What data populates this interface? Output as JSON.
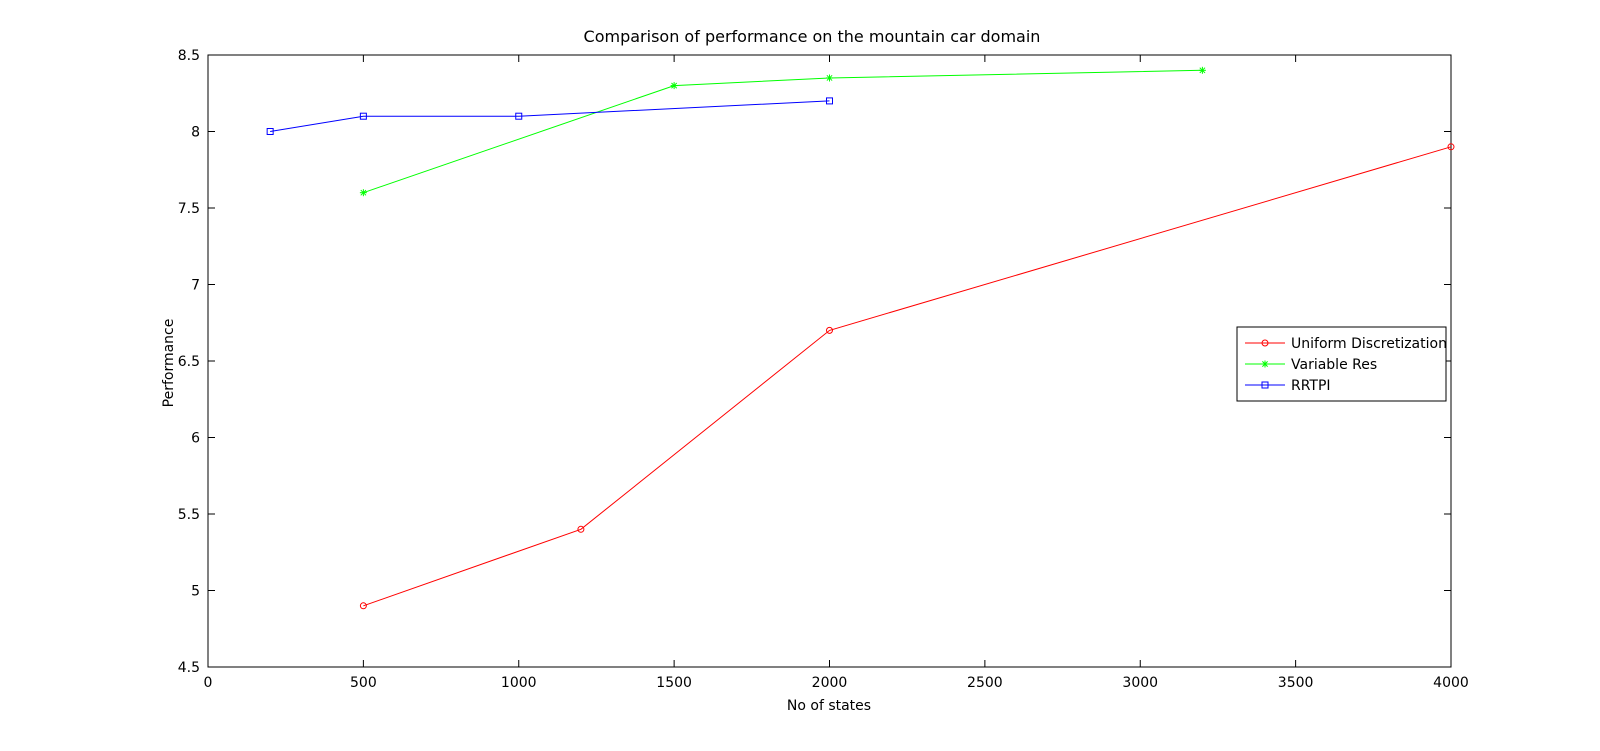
{
  "chart_data": {
    "type": "line",
    "title": "Comparison of performance on the mountain car domain",
    "xlabel": "No of states",
    "ylabel": "Performance",
    "xlim": [
      0,
      4000
    ],
    "ylim": [
      4.5,
      8.5
    ],
    "xticks": [
      0,
      500,
      1000,
      1500,
      2000,
      2500,
      3000,
      3500,
      4000
    ],
    "yticks": [
      4.5,
      5,
      5.5,
      6,
      6.5,
      7,
      7.5,
      8,
      8.5
    ],
    "grid": false,
    "legend_position": "right",
    "series": [
      {
        "name": "Uniform Discretization",
        "color": "#ff0000",
        "marker": "circle",
        "x": [
          500,
          1200,
          2000,
          4000
        ],
        "y": [
          4.9,
          5.4,
          6.7,
          7.9
        ]
      },
      {
        "name": "Variable Res",
        "color": "#00ff00",
        "marker": "star",
        "x": [
          500,
          1500,
          2000,
          3200
        ],
        "y": [
          7.6,
          8.3,
          8.35,
          8.4
        ]
      },
      {
        "name": "RRTPI",
        "color": "#0000ff",
        "marker": "square",
        "x": [
          200,
          500,
          1000,
          2000
        ],
        "y": [
          8.0,
          8.1,
          8.1,
          8.2
        ]
      }
    ]
  }
}
